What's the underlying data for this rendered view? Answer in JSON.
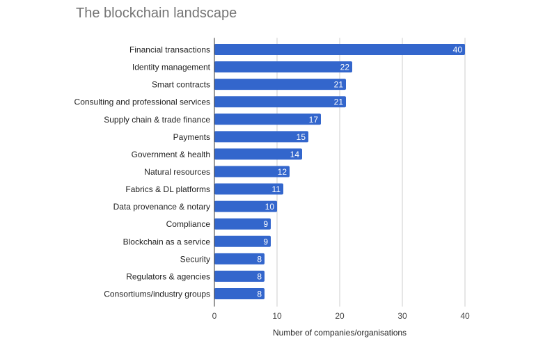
{
  "chart_data": {
    "type": "bar",
    "orientation": "horizontal",
    "title": "The blockchain landscape",
    "xlabel": "Number of companies/organisations",
    "ylabel": "",
    "xlim": [
      0,
      40
    ],
    "xticks": [
      0,
      10,
      20,
      30,
      40
    ],
    "grid": true,
    "legend": "none",
    "bar_color": "#3366cc",
    "categories": [
      "Financial transactions",
      "Identity management",
      "Smart contracts",
      "Consulting and professional services",
      "Supply chain & trade finance",
      "Payments",
      "Government & health",
      "Natural resources",
      "Fabrics & DL platforms",
      "Data provenance & notary",
      "Compliance",
      "Blockchain as a service",
      "Security",
      "Regulators & agencies",
      "Consortiums/industry groups"
    ],
    "values": [
      40,
      22,
      21,
      21,
      17,
      15,
      14,
      12,
      11,
      10,
      9,
      9,
      8,
      8,
      8
    ]
  }
}
